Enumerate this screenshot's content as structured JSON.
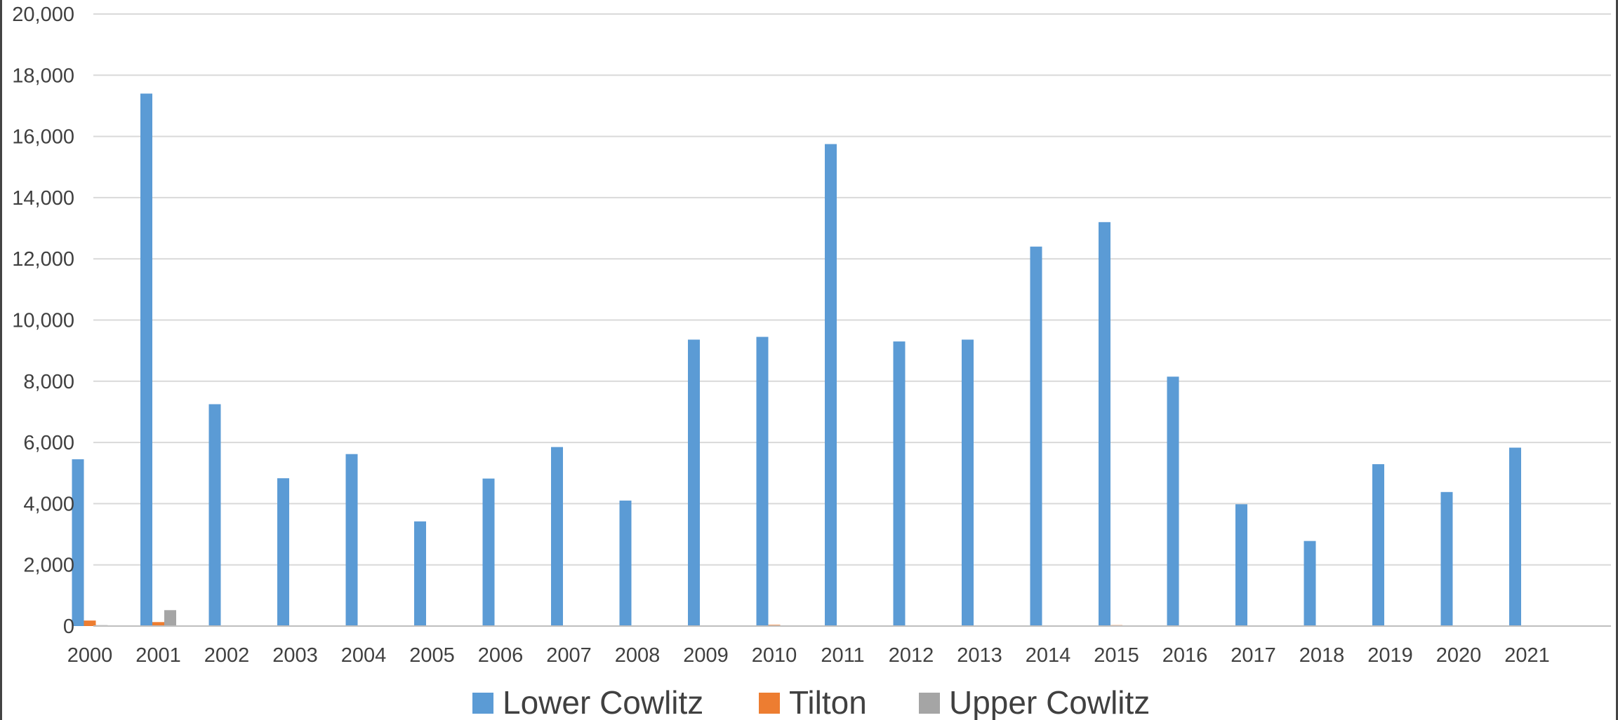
{
  "chart_data": {
    "type": "bar",
    "title": "",
    "xlabel": "",
    "ylabel": "",
    "ylim": [
      0,
      20000
    ],
    "yticks": [
      0,
      2000,
      4000,
      6000,
      8000,
      10000,
      12000,
      14000,
      16000,
      18000,
      20000
    ],
    "ytick_labels": [
      "0",
      "2,000",
      "4,000",
      "6,000",
      "8,000",
      "10,000",
      "12,000",
      "14,000",
      "16,000",
      "18,000",
      "20,000"
    ],
    "grid": true,
    "legend_position": "bottom",
    "categories": [
      "2000",
      "2001",
      "2002",
      "2003",
      "2004",
      "2005",
      "2006",
      "2007",
      "2008",
      "2009",
      "2010",
      "2011",
      "2012",
      "2013",
      "2014",
      "2015",
      "2016",
      "2017",
      "2018",
      "2019",
      "2020",
      "2021"
    ],
    "series": [
      {
        "name": "Lower Cowlitz",
        "color": "#5B9BD5",
        "values": [
          5450,
          17400,
          7250,
          4830,
          5620,
          3420,
          4820,
          5850,
          4100,
          9360,
          9450,
          15750,
          9300,
          9360,
          12400,
          13200,
          8150,
          3980,
          2780,
          5290,
          4380,
          5830
        ]
      },
      {
        "name": "Tilton",
        "color": "#ED7D31",
        "values": [
          180,
          130,
          10,
          15,
          10,
          5,
          5,
          5,
          5,
          5,
          40,
          5,
          5,
          5,
          5,
          30,
          5,
          5,
          5,
          5,
          5,
          5
        ]
      },
      {
        "name": "Upper Cowlitz",
        "color": "#A5A5A5",
        "values": [
          30,
          520,
          20,
          10,
          15,
          5,
          5,
          5,
          5,
          5,
          10,
          5,
          10,
          10,
          5,
          10,
          5,
          5,
          5,
          10,
          10,
          5
        ]
      }
    ],
    "grid_color": "#D9D9D9",
    "axis_color": "#BFBFBF",
    "text_color": "#404040"
  }
}
